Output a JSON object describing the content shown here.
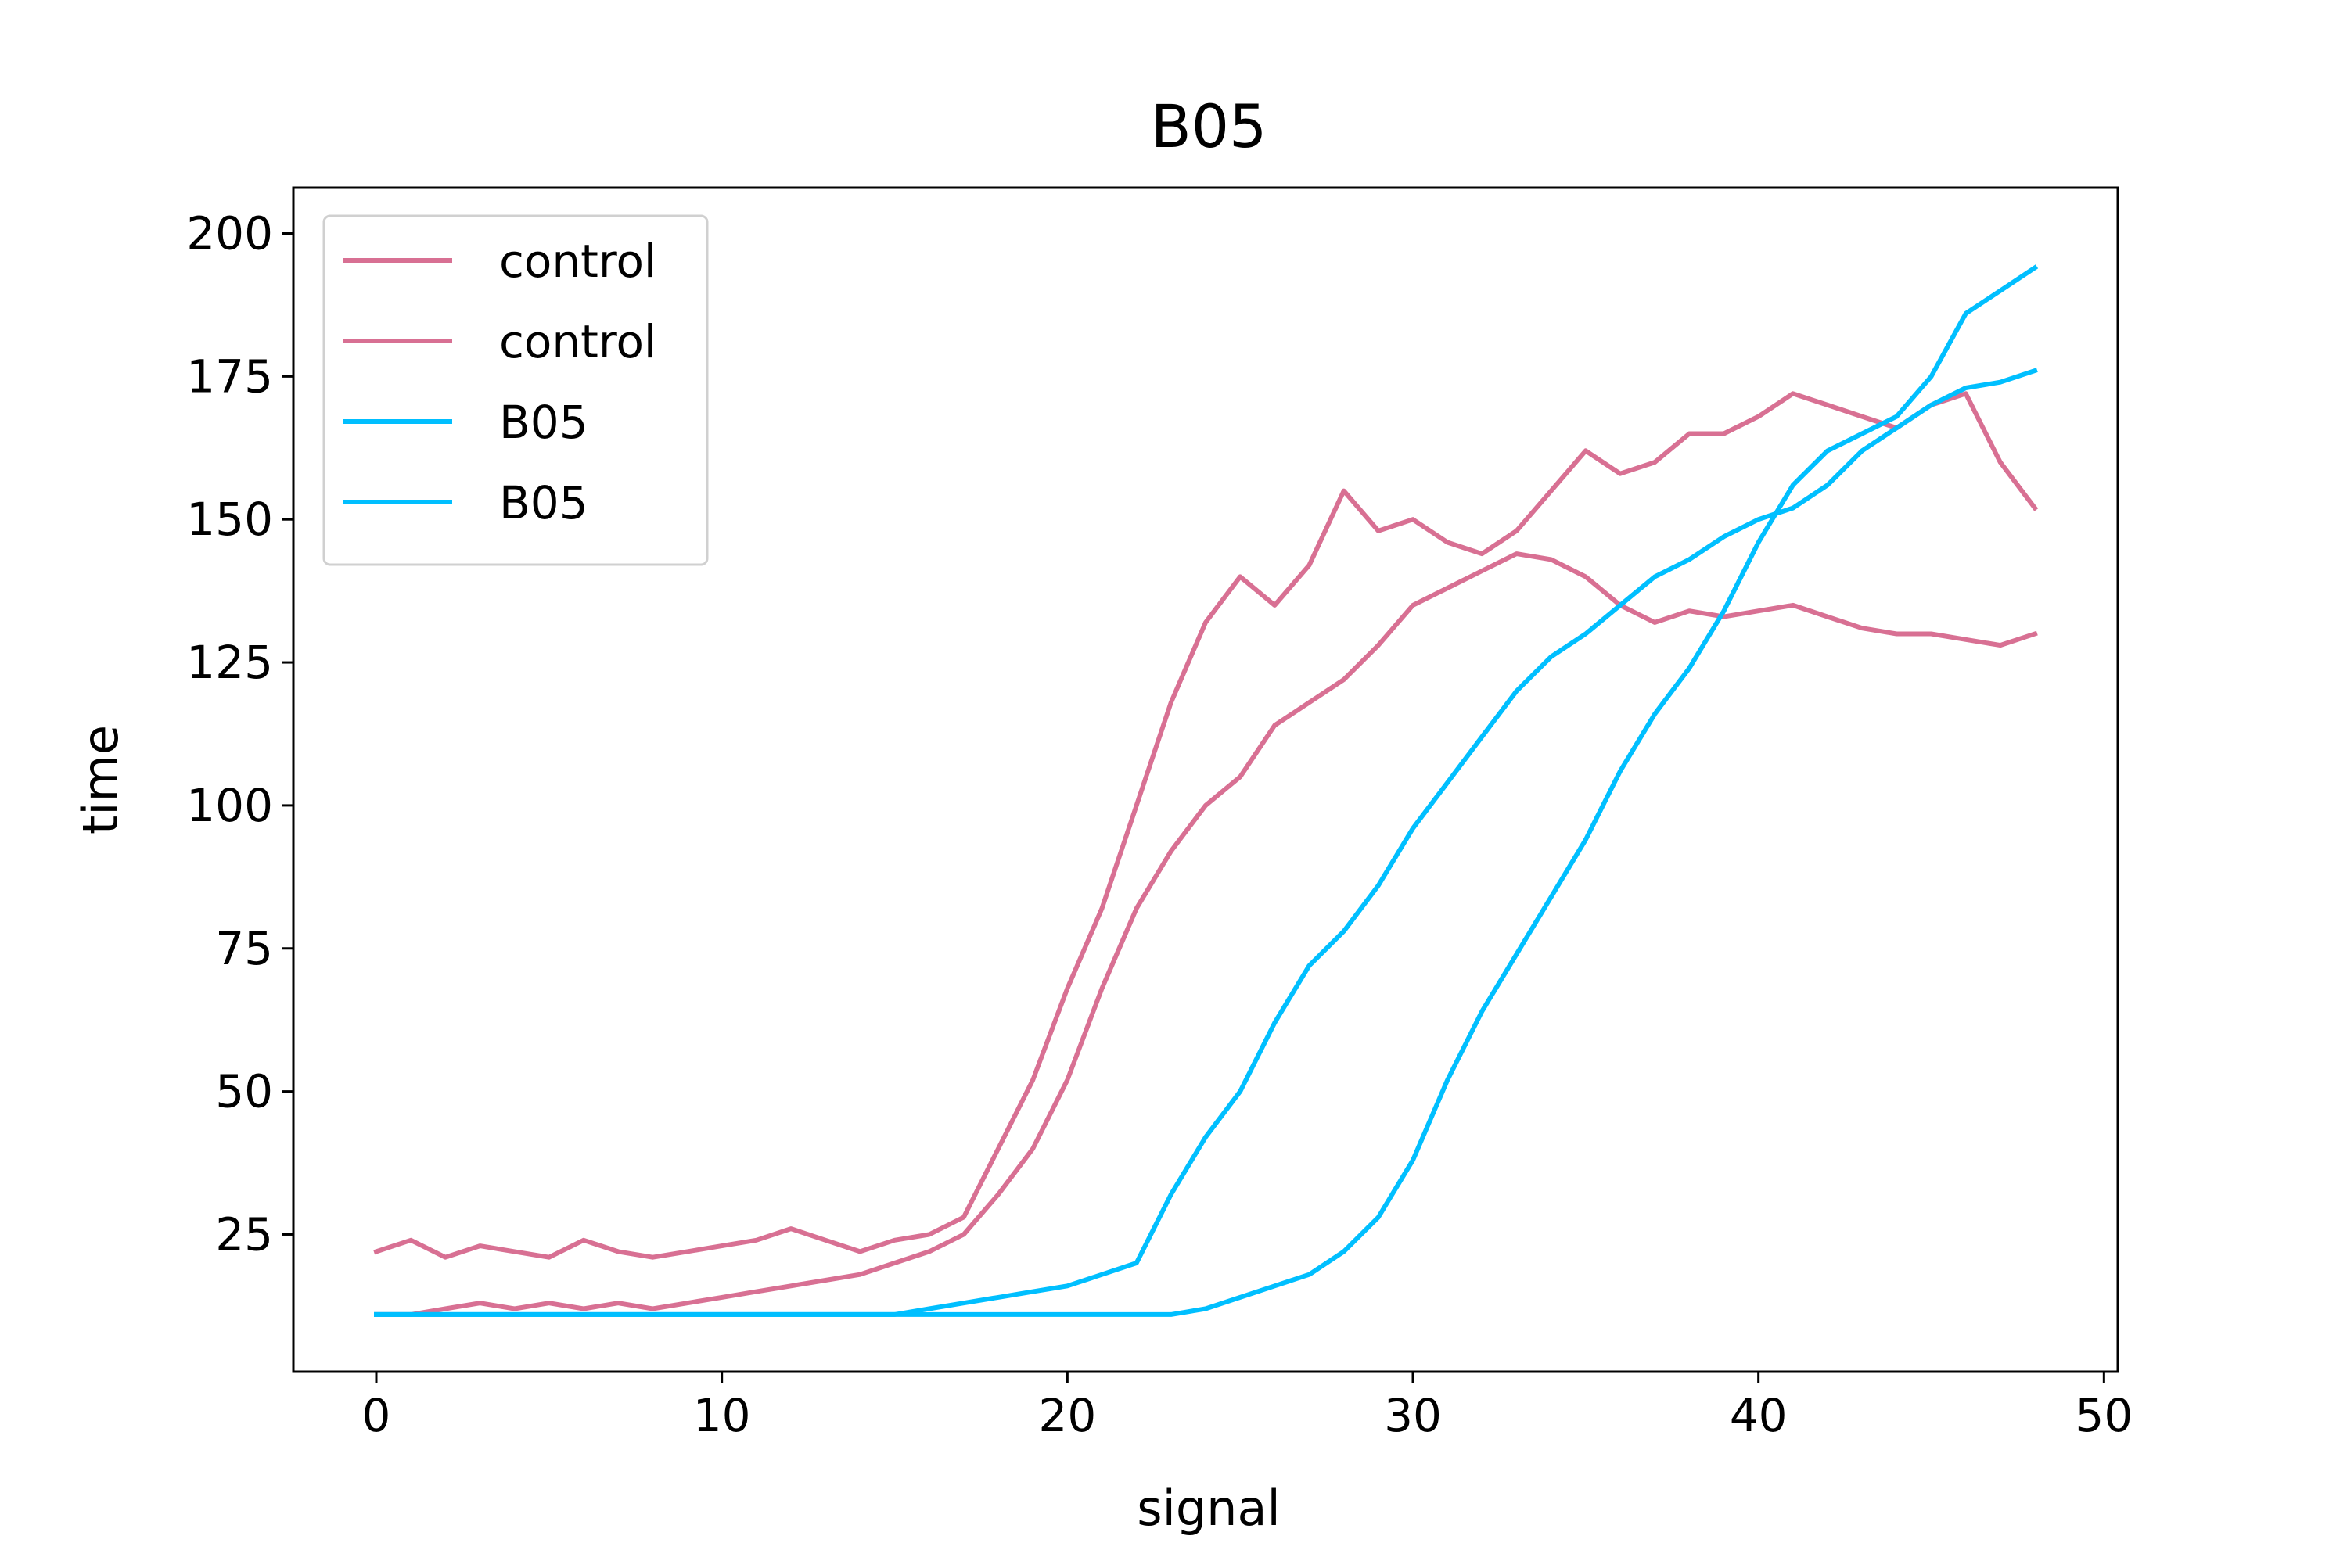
{
  "chart_data": {
    "type": "line",
    "title": "B05",
    "xlabel": "signal",
    "ylabel": "time",
    "xlim": [
      -2.4,
      50.4
    ],
    "ylim": [
      1.0,
      208.0
    ],
    "x_ticks": [
      0,
      10,
      20,
      30,
      40,
      50
    ],
    "x_tick_labels": [
      "0",
      "10",
      "20",
      "30",
      "40",
      "50"
    ],
    "y_ticks": [
      25,
      50,
      75,
      100,
      125,
      150,
      175,
      200
    ],
    "y_tick_labels": [
      "25",
      "50",
      "75",
      "100",
      "125",
      "150",
      "175",
      "200"
    ],
    "grid": false,
    "legend": {
      "position": "top-left",
      "entries": [
        "control",
        "control",
        "B05",
        "B05"
      ]
    },
    "x": [
      0,
      1,
      2,
      3,
      4,
      5,
      6,
      7,
      8,
      9,
      10,
      11,
      12,
      13,
      14,
      15,
      16,
      17,
      18,
      19,
      20,
      21,
      22,
      23,
      24,
      25,
      26,
      27,
      28,
      29,
      30,
      31,
      32,
      33,
      34,
      35,
      36,
      37,
      38,
      39,
      40,
      41,
      42,
      43,
      44,
      45,
      46,
      47,
      48
    ],
    "series": [
      {
        "name": "control",
        "color": "#d87093",
        "values": [
          22,
          24,
          21,
          23,
          22,
          21,
          24,
          22,
          21,
          22,
          23,
          24,
          26,
          24,
          22,
          24,
          25,
          28,
          40,
          52,
          68,
          82,
          100,
          118,
          132,
          140,
          135,
          142,
          155,
          148,
          150,
          146,
          144,
          148,
          155,
          162,
          158,
          160,
          165,
          165,
          168,
          172,
          170,
          168,
          166,
          170,
          172,
          160,
          152
        ]
      },
      {
        "name": "control",
        "color": "#d87093",
        "values": [
          11,
          11,
          12,
          13,
          12,
          13,
          12,
          13,
          12,
          13,
          14,
          15,
          16,
          17,
          18,
          20,
          22,
          25,
          32,
          40,
          52,
          68,
          82,
          92,
          100,
          105,
          114,
          118,
          122,
          128,
          135,
          138,
          141,
          144,
          143,
          140,
          135,
          132,
          134,
          133,
          134,
          135,
          133,
          131,
          130,
          130,
          129,
          128,
          130
        ]
      },
      {
        "name": "B05",
        "color": "#00bfff",
        "values": [
          11,
          11,
          11,
          11,
          11,
          11,
          11,
          11,
          11,
          11,
          11,
          11,
          11,
          11,
          11,
          11,
          12,
          13,
          14,
          15,
          16,
          18,
          20,
          32,
          42,
          50,
          62,
          72,
          78,
          86,
          96,
          104,
          112,
          120,
          126,
          130,
          135,
          140,
          143,
          147,
          150,
          152,
          156,
          162,
          166,
          170,
          173,
          174,
          176
        ]
      },
      {
        "name": "B05",
        "color": "#00bfff",
        "values": [
          11,
          11,
          11,
          11,
          11,
          11,
          11,
          11,
          11,
          11,
          11,
          11,
          11,
          11,
          11,
          11,
          11,
          11,
          11,
          11,
          11,
          11,
          11,
          11,
          12,
          14,
          16,
          18,
          22,
          28,
          38,
          52,
          64,
          74,
          84,
          94,
          106,
          116,
          124,
          134,
          146,
          156,
          162,
          165,
          168,
          175,
          186,
          190,
          194
        ]
      }
    ]
  }
}
